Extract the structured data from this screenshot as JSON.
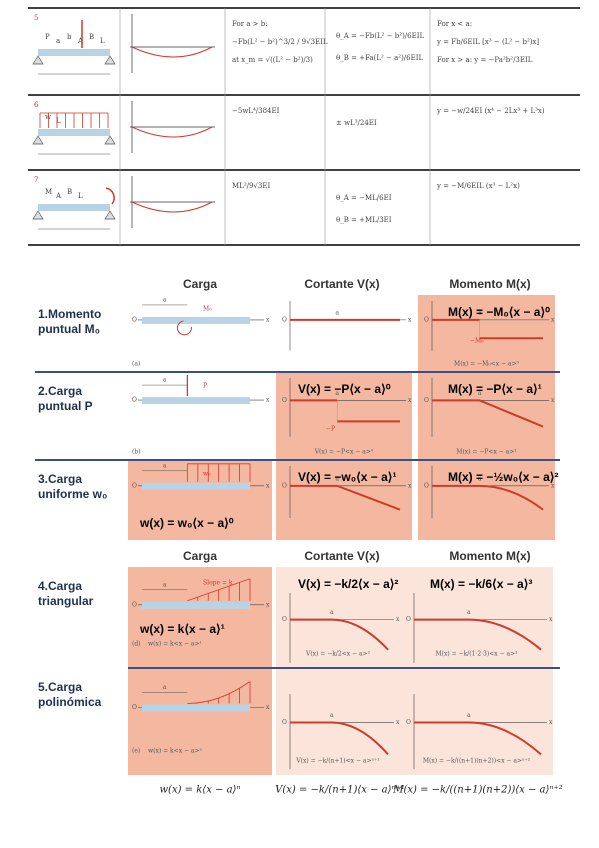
{
  "table": {
    "rows": [
      {
        "case": "5",
        "figure_labels": [
          "P",
          "a",
          "b",
          "A",
          "B",
          "L"
        ],
        "max_deflection": [
          "For a > b:",
          "−Fb(L² − b²)^3/2 / 9√3EIL",
          "at x_m = √((L² − b²)/3)"
        ],
        "slopes": [
          "θ_A = −Fb(L² − b²)/6EIL",
          "θ_B = +Fa(L² − a²)/6EIL"
        ],
        "elastic_curve": [
          "For x < a:",
          "y = Fb/6EIL [x³ − (L² − b²)x]",
          "For x > a:  y = −Pa²b²/3EIL"
        ]
      },
      {
        "case": "6",
        "figure_labels": [
          "w",
          "L"
        ],
        "max_deflection": [
          "−5wL⁴/384EI"
        ],
        "slopes": [
          "± wL³/24EI"
        ],
        "elastic_curve": [
          "y = −w/24EI (x⁴ − 2Lx³ + L³x)"
        ]
      },
      {
        "case": "7",
        "figure_labels": [
          "M",
          "A",
          "B",
          "L"
        ],
        "max_deflection": [
          "ML²/9√3EI"
        ],
        "slopes": [
          "θ_A = −ML/6EI",
          "θ_B = +ML/3EI"
        ],
        "elastic_curve": [
          "y = −M/6EIL (x³ − L²x)"
        ]
      }
    ]
  },
  "plot_labels": {
    "origin": "O",
    "axis": "x",
    "a": "a"
  },
  "sections": [
    {
      "headers": [
        "Carga",
        "Cortante V(x)",
        "Momento M(x)"
      ],
      "rows": [
        {
          "label": [
            "1.Momento",
            "puntual M₀"
          ],
          "moment_eq": "M(x) = −M₀⟨x − a⟩⁰",
          "tags": {
            "load": "M₀",
            "fig": "(a)",
            "moment": "−M₀"
          },
          "moment_caption": "M(x) = −M₀<x − a>⁰"
        },
        {
          "label": [
            "2.Carga",
            "puntual P"
          ],
          "shear_eq": "V(x) = −P⟨x − a⟩⁰",
          "moment_eq": "M(x) = −P⟨x − a⟩¹",
          "tags": {
            "load": "P",
            "fig": "(b)",
            "shear": "−P"
          },
          "shear_caption": "V(x) = −P<x − a>⁰",
          "moment_caption": "M(x) = −P<x − a>¹"
        },
        {
          "label": [
            "3.Carga",
            "uniforme w₀"
          ],
          "load_eq": "w(x) = w₀⟨x − a⟩⁰",
          "shear_eq": "V(x) = −w₀⟨x − a⟩¹",
          "moment_eq": "M(x) = −½w₀⟨x − a⟩²",
          "tags": {
            "load": "w₀"
          }
        }
      ]
    },
    {
      "headers": [
        "Carga",
        "Cortante V(x)",
        "Momento M(x)"
      ],
      "rows": [
        {
          "label": [
            "4.Carga",
            "triangular"
          ],
          "load_eq": "w(x) = k⟨x − a⟩¹",
          "shear_eq": "V(x) = −k/2⟨x − a⟩²",
          "moment_eq": "M(x) = −k/6⟨x − a⟩³",
          "tags": {
            "load": "Slope = k",
            "fig": "(d)"
          },
          "load_caption": "w(x) = k<x − a>¹",
          "shear_caption": "V(x) = −k/2<x − a>²",
          "moment_caption": "M(x) = −k/(1·2·3)<x − a>³"
        },
        {
          "label": [
            "5.Carga",
            "polinómica"
          ],
          "tags": {
            "fig": "(e)"
          },
          "load_caption": "w(x) = k<x − a>ⁿ",
          "shear_caption": "V(x) = −k/(n+1)<x − a>ⁿ⁺¹",
          "moment_caption": "M(x) = −k/((n+1)(n+2))<x − a>ⁿ⁺²"
        }
      ],
      "footer": [
        "w(x) = k⟨x − a⟩ⁿ",
        "V(x) = −k/(n+1)⟨x − a⟩ⁿ⁺¹",
        "M(x) = −k/((n+1)(n+2))⟨x − a⟩ⁿ⁺²"
      ]
    }
  ]
}
